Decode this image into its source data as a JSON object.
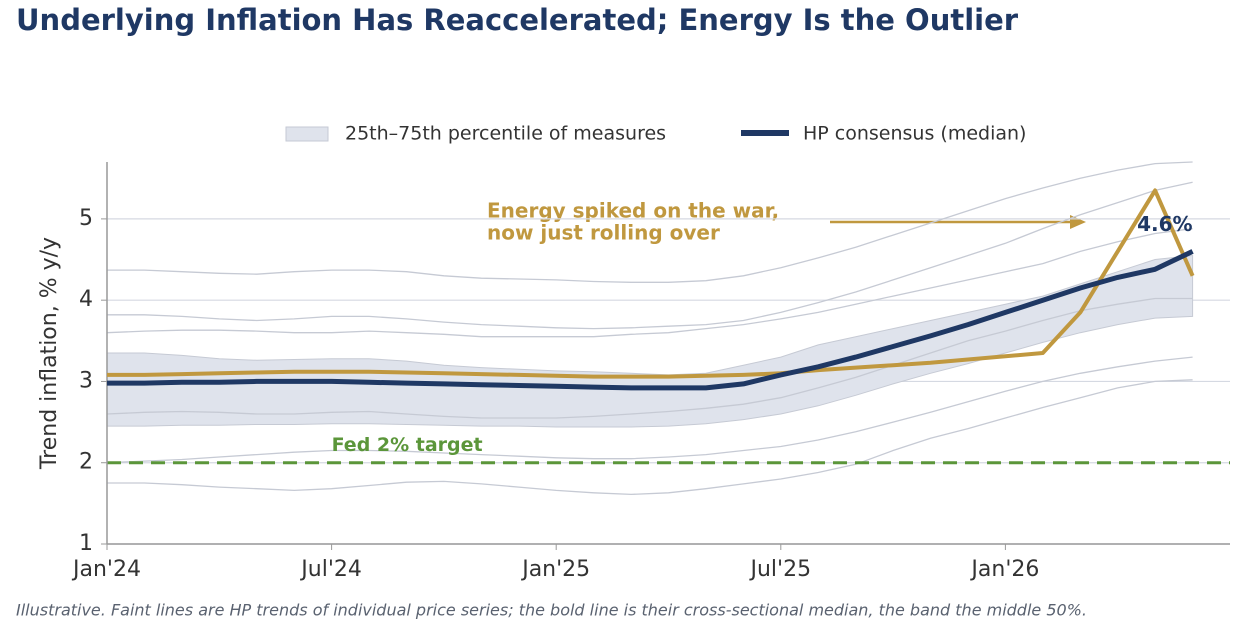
{
  "chart_data": {
    "type": "line",
    "title": "Underlying Inflation Has Reaccelerated; Energy Is the Outlier",
    "ylabel": "Trend inflation, % y/y",
    "footnote": "Illustrative. Faint lines are HP trends of individual price series; the bold line is their cross-sectional median, the band the middle 50%.",
    "x": [
      "2024-01",
      "2024-02",
      "2024-03",
      "2024-04",
      "2024-05",
      "2024-06",
      "2024-07",
      "2024-08",
      "2024-09",
      "2024-10",
      "2024-11",
      "2024-12",
      "2025-01",
      "2025-02",
      "2025-03",
      "2025-04",
      "2025-05",
      "2025-06",
      "2025-07",
      "2025-08",
      "2025-09",
      "2025-10",
      "2025-11",
      "2025-12",
      "2026-01",
      "2026-02",
      "2026-03",
      "2026-04",
      "2026-05",
      "2026-06"
    ],
    "xlim": [
      "2024-01",
      "2026-07"
    ],
    "xticks": [
      {
        "value": "2024-01",
        "label": "Jan'24"
      },
      {
        "value": "2024-07",
        "label": "Jul'24"
      },
      {
        "value": "2025-01",
        "label": "Jan'25"
      },
      {
        "value": "2025-07",
        "label": "Jul'25"
      },
      {
        "value": "2026-01",
        "label": "Jan'26"
      }
    ],
    "ylim": [
      1,
      5.7
    ],
    "yticks": [
      1,
      2,
      3,
      4,
      5
    ],
    "grid": true,
    "band": {
      "name": "25th–75th percentile of measures",
      "color": "#dfe3ec",
      "lower": [
        2.45,
        2.45,
        2.46,
        2.46,
        2.47,
        2.47,
        2.48,
        2.48,
        2.47,
        2.46,
        2.45,
        2.45,
        2.44,
        2.44,
        2.44,
        2.45,
        2.48,
        2.53,
        2.6,
        2.7,
        2.83,
        2.97,
        3.1,
        3.22,
        3.35,
        3.48,
        3.6,
        3.7,
        3.78,
        3.8
      ],
      "upper": [
        3.35,
        3.35,
        3.32,
        3.28,
        3.26,
        3.27,
        3.28,
        3.28,
        3.25,
        3.2,
        3.17,
        3.15,
        3.13,
        3.12,
        3.1,
        3.08,
        3.1,
        3.2,
        3.3,
        3.45,
        3.55,
        3.65,
        3.75,
        3.85,
        3.95,
        4.05,
        4.2,
        4.35,
        4.5,
        4.55
      ]
    },
    "faint_color": "#c6cad4",
    "faint_series": [
      [
        4.37,
        4.37,
        4.35,
        4.33,
        4.32,
        4.35,
        4.37,
        4.37,
        4.35,
        4.3,
        4.27,
        4.26,
        4.25,
        4.23,
        4.22,
        4.22,
        4.24,
        4.3,
        4.4,
        4.52,
        4.65,
        4.8,
        4.95,
        5.1,
        5.25,
        5.38,
        5.5,
        5.6,
        5.68,
        5.7
      ],
      [
        3.82,
        3.82,
        3.8,
        3.77,
        3.75,
        3.77,
        3.8,
        3.8,
        3.77,
        3.73,
        3.7,
        3.68,
        3.66,
        3.65,
        3.66,
        3.68,
        3.7,
        3.75,
        3.85,
        3.97,
        4.1,
        4.25,
        4.4,
        4.55,
        4.7,
        4.88,
        5.05,
        5.2,
        5.35,
        5.45
      ],
      [
        3.6,
        3.62,
        3.63,
        3.63,
        3.62,
        3.6,
        3.6,
        3.62,
        3.6,
        3.58,
        3.55,
        3.55,
        3.55,
        3.55,
        3.58,
        3.6,
        3.65,
        3.7,
        3.77,
        3.85,
        3.95,
        4.05,
        4.15,
        4.25,
        4.35,
        4.45,
        4.6,
        4.72,
        4.82,
        4.88
      ],
      [
        2.6,
        2.62,
        2.63,
        2.62,
        2.6,
        2.6,
        2.62,
        2.63,
        2.6,
        2.57,
        2.55,
        2.55,
        2.55,
        2.57,
        2.6,
        2.63,
        2.67,
        2.72,
        2.8,
        2.92,
        3.05,
        3.2,
        3.35,
        3.5,
        3.62,
        3.75,
        3.87,
        3.95,
        4.02,
        4.02
      ],
      [
        2.0,
        2.02,
        2.04,
        2.07,
        2.1,
        2.13,
        2.15,
        2.15,
        2.14,
        2.12,
        2.1,
        2.08,
        2.06,
        2.05,
        2.05,
        2.07,
        2.1,
        2.15,
        2.2,
        2.28,
        2.38,
        2.5,
        2.62,
        2.75,
        2.88,
        3.0,
        3.1,
        3.18,
        3.25,
        3.3
      ],
      [
        1.75,
        1.75,
        1.73,
        1.7,
        1.68,
        1.66,
        1.68,
        1.72,
        1.76,
        1.77,
        1.74,
        1.7,
        1.66,
        1.63,
        1.61,
        1.63,
        1.68,
        1.74,
        1.8,
        1.88,
        1.98,
        2.15,
        2.3,
        2.42,
        2.55,
        2.68,
        2.8,
        2.92,
        3.0,
        3.02
      ]
    ],
    "target": {
      "value": 2,
      "label": "Fed 2% target",
      "color": "#5b963a"
    },
    "series": [
      {
        "color": "#c0983f",
        "values": [
          3.08,
          3.08,
          3.09,
          3.1,
          3.11,
          3.12,
          3.12,
          3.12,
          3.11,
          3.1,
          3.09,
          3.08,
          3.07,
          3.06,
          3.06,
          3.06,
          3.07,
          3.08,
          3.1,
          3.14,
          3.17,
          3.2,
          3.23,
          3.27,
          3.31,
          3.35,
          3.85,
          4.6,
          5.35,
          4.3
        ]
      },
      {
        "name": "HP consensus (median)",
        "color": "#1f3864",
        "values": [
          2.98,
          2.98,
          2.99,
          2.99,
          3.0,
          3.0,
          3.0,
          2.99,
          2.98,
          2.97,
          2.96,
          2.95,
          2.94,
          2.93,
          2.92,
          2.92,
          2.92,
          2.97,
          3.08,
          3.18,
          3.3,
          3.43,
          3.56,
          3.7,
          3.85,
          4.0,
          4.15,
          4.28,
          4.38,
          4.6
        ],
        "value_labels": [
          null,
          null,
          null,
          null,
          null,
          null,
          null,
          null,
          null,
          null,
          null,
          null,
          null,
          null,
          null,
          null,
          null,
          null,
          null,
          null,
          null,
          null,
          null,
          null,
          null,
          null,
          null,
          null,
          null,
          "4.6%"
        ]
      }
    ],
    "annotation": [
      "Energy spiked on the war,",
      "now just rolling over"
    ]
  }
}
